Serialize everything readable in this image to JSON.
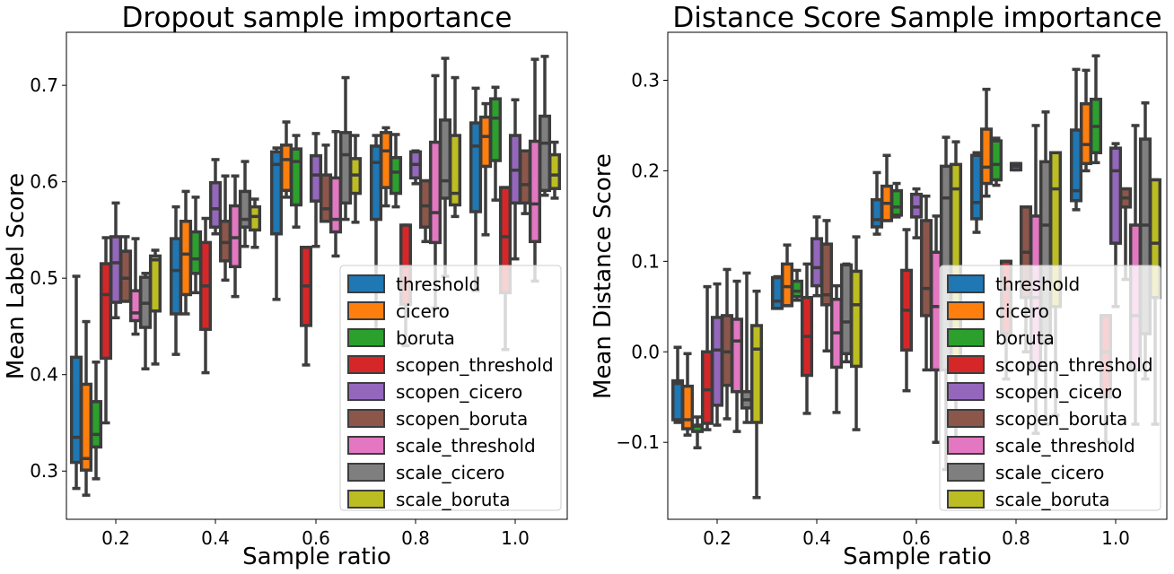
{
  "legend_labels": [
    "threshold",
    "cicero",
    "boruta",
    "scopen_threshold",
    "scopen_cicero",
    "scopen_boruta",
    "scale_threshold",
    "scale_cicero",
    "scale_boruta"
  ],
  "colors": [
    "#1f77b4",
    "#ff7f0e",
    "#2ca02c",
    "#d62728",
    "#9467bd",
    "#8c564b",
    "#e377c2",
    "#7f7f7f",
    "#bcbd22"
  ],
  "chart_data": [
    {
      "type": "box",
      "title": "Dropout sample importance",
      "xlabel": "Sample ratio",
      "ylabel": "Mean Label Score",
      "categories": [
        "0.2",
        "0.4",
        "0.6",
        "0.8",
        "1.0"
      ],
      "ylim": [
        0.25,
        0.755
      ],
      "yticks": [
        0.3,
        0.4,
        0.5,
        0.6,
        0.7
      ],
      "legend_position": "lower-right",
      "series": [
        {
          "name": "threshold",
          "boxes": [
            [
              0.282,
              0.309,
              0.335,
              0.418,
              0.502
            ],
            [
              0.421,
              0.463,
              0.508,
              0.541,
              0.574
            ],
            [
              0.478,
              0.546,
              0.618,
              0.631,
              0.635
            ],
            [
              0.43,
              0.561,
              0.62,
              0.637,
              0.648
            ],
            [
              0.487,
              0.569,
              0.637,
              0.661,
              0.697
            ]
          ]
        },
        {
          "name": "cicero",
          "boxes": [
            [
              0.275,
              0.301,
              0.313,
              0.39,
              0.455
            ],
            [
              0.463,
              0.483,
              0.525,
              0.559,
              0.59
            ],
            [
              0.584,
              0.591,
              0.623,
              0.638,
              0.662
            ],
            [
              0.575,
              0.594,
              0.632,
              0.651,
              0.656
            ],
            [
              0.545,
              0.616,
              0.647,
              0.667,
              0.681
            ]
          ]
        },
        {
          "name": "boruta",
          "boxes": [
            [
              0.292,
              0.325,
              0.338,
              0.372,
              0.413
            ],
            [
              0.485,
              0.505,
              0.52,
              0.548,
              0.584
            ],
            [
              0.553,
              0.576,
              0.621,
              0.634,
              0.648
            ],
            [
              0.574,
              0.588,
              0.61,
              0.625,
              0.649
            ],
            [
              0.581,
              0.622,
              0.666,
              0.686,
              0.698
            ]
          ]
        },
        {
          "name": "scopen_threshold",
          "boxes": [
            [
              0.35,
              0.417,
              0.483,
              0.515,
              0.542
            ],
            [
              0.402,
              0.447,
              0.492,
              0.537,
              0.562
            ],
            [
              0.41,
              0.451,
              0.492,
              0.532,
              0.532
            ],
            [
              0.43,
              0.473,
              0.512,
              0.555,
              0.555
            ],
            [
              0.426,
              0.485,
              0.543,
              0.594,
              0.594
            ]
          ]
        },
        {
          "name": "scopen_cicero",
          "boxes": [
            [
              0.459,
              0.475,
              0.516,
              0.543,
              0.578
            ],
            [
              0.546,
              0.553,
              0.572,
              0.599,
              0.623
            ],
            [
              0.533,
              0.58,
              0.607,
              0.627,
              0.65
            ],
            [
              0.598,
              0.604,
              0.618,
              0.631,
              0.632
            ],
            [
              0.52,
              0.578,
              0.612,
              0.648,
              0.685
            ]
          ]
        },
        {
          "name": "scopen_boruta",
          "boxes": [
            [
              0.477,
              0.476,
              0.5,
              0.528,
              0.543
            ],
            [
              0.498,
              0.518,
              0.537,
              0.559,
              0.606
            ],
            [
              0.559,
              0.559,
              0.572,
              0.607,
              0.638
            ],
            [
              0.538,
              0.553,
              0.575,
              0.601,
              0.601
            ],
            [
              0.567,
              0.578,
              0.597,
              0.632,
              0.632
            ]
          ]
        },
        {
          "name": "scale_threshold",
          "boxes": [
            [
              0.442,
              0.456,
              0.464,
              0.487,
              0.541
            ],
            [
              0.481,
              0.512,
              0.542,
              0.575,
              0.606
            ],
            [
              0.523,
              0.548,
              0.561,
              0.604,
              0.652
            ],
            [
              0.469,
              0.537,
              0.568,
              0.641,
              0.71
            ],
            [
              0.497,
              0.538,
              0.577,
              0.642,
              0.727
            ]
          ]
        },
        {
          "name": "scale_cicero",
          "boxes": [
            [
              0.406,
              0.449,
              0.474,
              0.501,
              0.505
            ],
            [
              0.533,
              0.553,
              0.561,
              0.59,
              0.621
            ],
            [
              0.561,
              0.578,
              0.628,
              0.651,
              0.708
            ],
            [
              0.502,
              0.583,
              0.601,
              0.664,
              0.728
            ],
            [
              0.586,
              0.591,
              0.64,
              0.668,
              0.73
            ]
          ]
        },
        {
          "name": "scale_boruta",
          "boxes": [
            [
              0.411,
              0.466,
              0.519,
              0.523,
              0.529
            ],
            [
              0.532,
              0.55,
              0.564,
              0.574,
              0.582
            ],
            [
              0.558,
              0.588,
              0.607,
              0.624,
              0.648
            ],
            [
              0.564,
              0.576,
              0.588,
              0.648,
              0.708
            ],
            [
              0.583,
              0.593,
              0.607,
              0.628,
              0.641
            ]
          ]
        }
      ]
    },
    {
      "type": "box",
      "title": "Distance Score Sample importance",
      "xlabel": "Sample ratio",
      "ylabel": "Mean Distance Score",
      "categories": [
        "0.2",
        "0.4",
        "0.6",
        "0.8",
        "1.0"
      ],
      "ylim": [
        -0.185,
        0.353
      ],
      "yticks": [
        -0.1,
        0.0,
        0.1,
        0.2,
        0.3
      ],
      "legend_position": "lower-right",
      "series": [
        {
          "name": "threshold",
          "boxes": [
            [
              -0.078,
              -0.075,
              -0.035,
              -0.032,
              0.005
            ],
            [
              0.048,
              0.048,
              0.056,
              0.082,
              0.083
            ],
            [
              0.13,
              0.138,
              0.146,
              0.168,
              0.198
            ],
            [
              0.132,
              0.147,
              0.165,
              0.217,
              0.22
            ],
            [
              0.157,
              0.167,
              0.178,
              0.245,
              0.312
            ]
          ]
        },
        {
          "name": "cicero",
          "boxes": [
            [
              -0.092,
              -0.085,
              -0.075,
              -0.038,
              -0.002
            ],
            [
              0.051,
              0.051,
              0.072,
              0.097,
              0.118
            ],
            [
              0.145,
              0.145,
              0.164,
              0.183,
              0.217
            ],
            [
              0.172,
              0.186,
              0.204,
              0.246,
              0.29
            ],
            [
              0.2,
              0.208,
              0.229,
              0.274,
              0.311
            ]
          ]
        },
        {
          "name": "boruta",
          "boxes": [
            [
              -0.106,
              -0.088,
              -0.082,
              -0.081,
              -0.072
            ],
            [
              0.057,
              0.061,
              0.067,
              0.078,
              0.09
            ],
            [
              0.149,
              0.151,
              0.16,
              0.178,
              0.186
            ],
            [
              0.184,
              0.19,
              0.207,
              0.233,
              0.236
            ],
            [
              0.209,
              0.22,
              0.249,
              0.279,
              0.327
            ]
          ]
        },
        {
          "name": "scopen_threshold",
          "boxes": [
            [
              -0.086,
              -0.079,
              -0.042,
              0.0,
              0.072
            ],
            [
              -0.068,
              -0.026,
              0.017,
              0.06,
              0.097
            ],
            [
              -0.043,
              0.002,
              0.046,
              0.09,
              0.135
            ],
            [
              -0.03,
              0.02,
              0.07,
              0.1,
              0.1
            ],
            [
              -0.1,
              -0.05,
              0.0,
              0.04,
              0.04
            ]
          ]
        },
        {
          "name": "scopen_cicero",
          "boxes": [
            [
              -0.081,
              -0.059,
              0.002,
              0.038,
              0.075
            ],
            [
              0.062,
              0.073,
              0.093,
              0.125,
              0.149
            ],
            [
              0.126,
              0.149,
              0.16,
              0.174,
              0.18
            ],
            [
              0.201,
              0.201,
              0.205,
              0.208,
              0.208
            ],
            [
              0.05,
              0.12,
              0.2,
              0.225,
              0.23
            ]
          ]
        },
        {
          "name": "scopen_boruta",
          "boxes": [
            [
              -0.074,
              -0.037,
              0.0,
              0.04,
              0.091
            ],
            [
              0.001,
              0.052,
              0.063,
              0.119,
              0.145
            ],
            [
              -0.02,
              0.04,
              0.07,
              0.145,
              0.172
            ],
            [
              0.0,
              0.06,
              0.11,
              0.16,
              0.16
            ],
            [
              0.08,
              0.16,
              0.17,
              0.18,
              0.18
            ]
          ]
        },
        {
          "name": "scale_threshold",
          "boxes": [
            [
              -0.088,
              -0.044,
              0.012,
              0.036,
              0.078
            ],
            [
              -0.067,
              -0.017,
              0.021,
              0.058,
              0.073
            ],
            [
              -0.1,
              -0.02,
              0.05,
              0.11,
              0.15
            ],
            [
              -0.09,
              -0.02,
              0.06,
              0.15,
              0.25
            ],
            [
              -0.08,
              -0.02,
              0.04,
              0.14,
              0.25
            ]
          ]
        },
        {
          "name": "scale_cicero",
          "boxes": [
            [
              -0.078,
              -0.062,
              -0.053,
              -0.044,
              0.087
            ],
            [
              -0.011,
              -0.002,
              0.033,
              0.096,
              0.097
            ],
            [
              -0.13,
              -0.02,
              0.17,
              0.205,
              0.237
            ],
            [
              -0.08,
              0.01,
              0.14,
              0.21,
              0.265
            ],
            [
              -0.03,
              0.02,
              0.14,
              0.235,
              0.275
            ]
          ]
        },
        {
          "name": "scale_boruta",
          "boxes": [
            [
              -0.161,
              -0.078,
              0.003,
              0.029,
              0.067
            ],
            [
              -0.086,
              -0.016,
              0.052,
              0.089,
              0.127
            ],
            [
              -0.1,
              -0.02,
              0.18,
              0.207,
              0.232
            ],
            [
              -0.07,
              0.05,
              0.18,
              0.22,
              0.22
            ],
            [
              -0.08,
              0.06,
              0.12,
              0.19,
              0.19
            ]
          ]
        }
      ]
    }
  ]
}
